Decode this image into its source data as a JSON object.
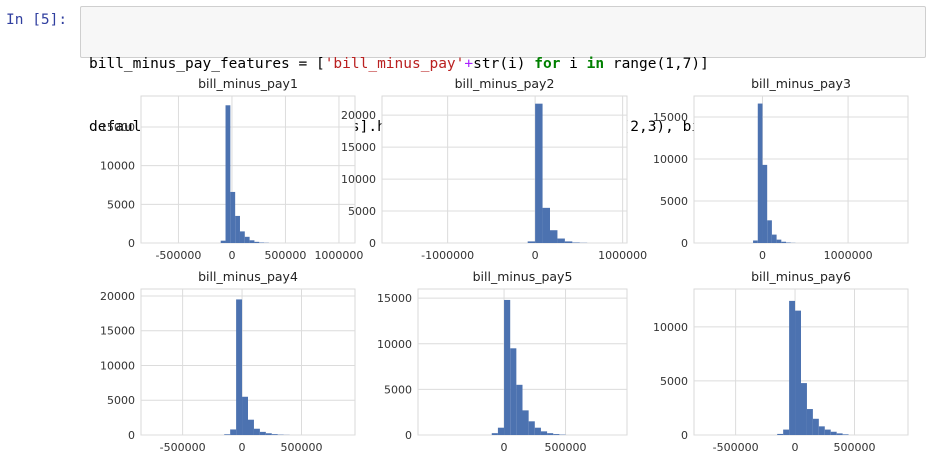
{
  "prompt": "In [5]:",
  "code": {
    "line1": [
      {
        "t": "bill_minus_pay_features = [",
        "c": ""
      },
      {
        "t": "'bill_minus_pay'",
        "c": "str"
      },
      {
        "t": "+",
        "c": "op"
      },
      {
        "t": "str(i) ",
        "c": ""
      },
      {
        "t": "for",
        "c": "kw"
      },
      {
        "t": " i ",
        "c": ""
      },
      {
        "t": "in",
        "c": "kw"
      },
      {
        "t": " range(1,7)]",
        "c": ""
      }
    ],
    "line2": [
      {
        "t": "default[bill_minus_pay_features].hist(figsize=(11,5), layout=(2,3), bins=30);",
        "c": ""
      }
    ]
  },
  "chart_data": [
    {
      "type": "bar",
      "title": "bill_minus_pay1",
      "xlim": [
        -850000,
        1150000
      ],
      "ylim": [
        0,
        19000
      ],
      "xticks": [
        {
          "v": -500000,
          "l": "-500000"
        },
        {
          "v": 0,
          "l": "0"
        },
        {
          "v": 500000,
          "l": "500000"
        },
        {
          "v": 1000000,
          "l": "1000000"
        }
      ],
      "yticks": [
        {
          "v": 0,
          "l": "0"
        },
        {
          "v": 5000,
          "l": "5000"
        },
        {
          "v": 10000,
          "l": "10000"
        },
        {
          "v": 15000,
          "l": "15000"
        }
      ],
      "bin_start": -105000,
      "bin_width": 45000,
      "values": [
        300,
        17800,
        6600,
        3500,
        1500,
        800,
        350,
        150,
        60,
        30
      ]
    },
    {
      "type": "bar",
      "title": "bill_minus_pay2",
      "xlim": [
        -1750000,
        1050000
      ],
      "ylim": [
        0,
        23000
      ],
      "xticks": [
        {
          "v": -1000000,
          "l": "-1000000"
        },
        {
          "v": 0,
          "l": "0"
        },
        {
          "v": 1000000,
          "l": "1000000"
        }
      ],
      "yticks": [
        {
          "v": 0,
          "l": "0"
        },
        {
          "v": 5000,
          "l": "5000"
        },
        {
          "v": 10000,
          "l": "10000"
        },
        {
          "v": 15000,
          "l": "15000"
        },
        {
          "v": 20000,
          "l": "20000"
        }
      ],
      "bin_start": -85000,
      "bin_width": 85000,
      "values": [
        250,
        21800,
        5500,
        2000,
        700,
        250,
        80,
        30
      ]
    },
    {
      "type": "bar",
      "title": "bill_minus_pay3",
      "xlim": [
        -800000,
        1700000
      ],
      "ylim": [
        0,
        17500
      ],
      "xticks": [
        {
          "v": 0,
          "l": "0"
        },
        {
          "v": 1000000,
          "l": "1000000"
        }
      ],
      "yticks": [
        {
          "v": 0,
          "l": "0"
        },
        {
          "v": 5000,
          "l": "5000"
        },
        {
          "v": 10000,
          "l": "10000"
        },
        {
          "v": 15000,
          "l": "15000"
        }
      ],
      "bin_start": -110000,
      "bin_width": 55000,
      "values": [
        300,
        16600,
        9300,
        2700,
        1000,
        400,
        150,
        60,
        20
      ]
    },
    {
      "type": "bar",
      "title": "bill_minus_pay4",
      "xlim": [
        -850000,
        950000
      ],
      "ylim": [
        0,
        21000
      ],
      "xticks": [
        {
          "v": -500000,
          "l": "-500000"
        },
        {
          "v": 0,
          "l": "0"
        },
        {
          "v": 500000,
          "l": "500000"
        }
      ],
      "yticks": [
        {
          "v": 0,
          "l": "0"
        },
        {
          "v": 5000,
          "l": "5000"
        },
        {
          "v": 10000,
          "l": "10000"
        },
        {
          "v": 15000,
          "l": "15000"
        },
        {
          "v": 20000,
          "l": "20000"
        }
      ],
      "bin_start": -150000,
      "bin_width": 50000,
      "values": [
        100,
        800,
        19500,
        5500,
        2200,
        900,
        450,
        250,
        120,
        50,
        20
      ]
    },
    {
      "type": "bar",
      "title": "bill_minus_pay5",
      "xlim": [
        -700000,
        1000000
      ],
      "ylim": [
        0,
        16000
      ],
      "xticks": [
        {
          "v": 0,
          "l": "0"
        },
        {
          "v": 500000,
          "l": "500000"
        }
      ],
      "yticks": [
        {
          "v": 0,
          "l": "0"
        },
        {
          "v": 5000,
          "l": "5000"
        },
        {
          "v": 10000,
          "l": "10000"
        },
        {
          "v": 15000,
          "l": "15000"
        }
      ],
      "bin_start": -100000,
      "bin_width": 50000,
      "values": [
        200,
        800,
        14800,
        9500,
        5500,
        2700,
        1500,
        800,
        400,
        200,
        100,
        40
      ]
    },
    {
      "type": "bar",
      "title": "bill_minus_pay6",
      "xlim": [
        -850000,
        950000
      ],
      "ylim": [
        0,
        13500
      ],
      "xticks": [
        {
          "v": -500000,
          "l": "-500000"
        },
        {
          "v": 0,
          "l": "0"
        },
        {
          "v": 500000,
          "l": "500000"
        }
      ],
      "yticks": [
        {
          "v": 0,
          "l": "0"
        },
        {
          "v": 5000,
          "l": "5000"
        },
        {
          "v": 10000,
          "l": "10000"
        }
      ],
      "bin_start": -150000,
      "bin_width": 50000,
      "values": [
        100,
        500,
        12400,
        11500,
        4800,
        2400,
        1500,
        800,
        500,
        300,
        150,
        60
      ]
    }
  ]
}
